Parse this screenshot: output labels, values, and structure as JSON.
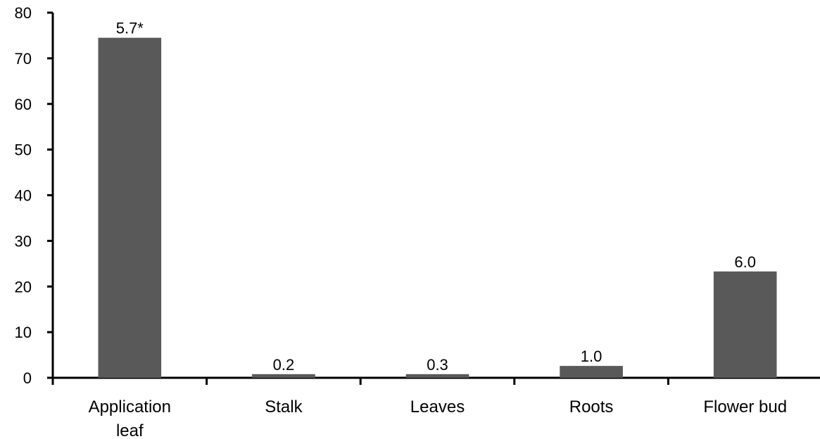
{
  "chart_data": {
    "type": "bar",
    "title": "",
    "xlabel": "",
    "ylabel": "",
    "categories": [
      [
        "Application",
        "leaf"
      ],
      [
        "Stalk"
      ],
      [
        "Leaves"
      ],
      [
        "Roots"
      ],
      [
        "Flower bud"
      ]
    ],
    "values": [
      74.5,
      0.8,
      0.8,
      2.6,
      23.3
    ],
    "data_labels": [
      "5.7*",
      "0.2",
      "0.3",
      "1.0",
      "6.0"
    ],
    "ylim": [
      0,
      80
    ],
    "yticks": [
      "0",
      "10",
      "20",
      "30",
      "40",
      "50",
      "60",
      "70",
      "80"
    ],
    "grid": false,
    "legend": "none",
    "bar_color": "#595959",
    "axis_color": "#000000"
  }
}
